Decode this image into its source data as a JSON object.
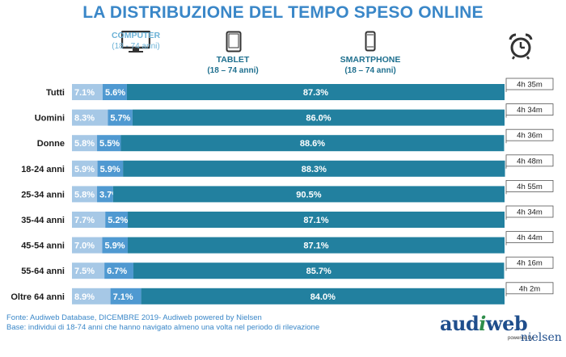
{
  "title": "LA DISTRIBUZIONE DEL TEMPO SPESO ONLINE",
  "devices": [
    {
      "name": "COMPUTER",
      "range": "(18 - 74 anni)",
      "icon": "monitor-icon",
      "color": "#a6c8e6"
    },
    {
      "name": "TABLET",
      "range": "(18 – 74 anni)",
      "icon": "tablet-icon",
      "color": "#4f99d1"
    },
    {
      "name": "SMARTPHONE",
      "range": "(18 – 74 anni)",
      "icon": "smartphone-icon",
      "color": "#22809f"
    }
  ],
  "time_icon": "alarm-clock-icon",
  "chart_data": {
    "type": "bar",
    "orientation": "horizontal",
    "stacked": true,
    "categories": [
      "Tutti",
      "Uomini",
      "Donne",
      "18-24 anni",
      "25-34 anni",
      "35-44 anni",
      "45-54 anni",
      "55-64 anni",
      "Oltre 64 anni"
    ],
    "series": [
      {
        "name": "COMPUTER",
        "color": "#a6c8e6",
        "labels": [
          "7.1%",
          "8.3%",
          "5.8%",
          "5.9%",
          "5.8%",
          "7.7%",
          "7.0%",
          "7.5%",
          "8.9%"
        ],
        "values": [
          7.1,
          8.3,
          5.8,
          5.9,
          5.8,
          7.7,
          7.0,
          7.5,
          8.9
        ]
      },
      {
        "name": "TABLET",
        "color": "#4f99d1",
        "labels": [
          "5.6%",
          "5.7%",
          "5.5%",
          "5.9%",
          "3.7%",
          "5.2%",
          "5.9%",
          "6.7%",
          "7.1%"
        ],
        "values": [
          5.6,
          5.7,
          5.5,
          5.9,
          3.7,
          5.2,
          5.9,
          6.7,
          7.1
        ]
      },
      {
        "name": "SMARTPHONE",
        "color": "#22809f",
        "labels": [
          "87.3%",
          "86.0%",
          "88.6%",
          "88.3%",
          "90.5%",
          "87.1%",
          "87.1%",
          "85.7%",
          "84.0%"
        ],
        "values": [
          87.3,
          86.0,
          88.6,
          88.3,
          90.5,
          87.1,
          87.1,
          85.7,
          84.0
        ]
      }
    ],
    "time_spent": [
      "4h 35m",
      "4h 34m",
      "4h 36m",
      "4h 48m",
      "4h 55m",
      "4h 34m",
      "4h 44m",
      "4h 16m",
      "4h 2m"
    ],
    "xlim": [
      0,
      100
    ],
    "grid": false
  },
  "source": {
    "line1": "Fonte: Audiweb Database, DICEMBRE 2019- Audiweb powered by Nielsen",
    "line2": "Base: individui di 18-74 anni che hanno navigato almeno una volta nel periodo di rilevazione"
  },
  "logo": {
    "main_a": "aud",
    "main_i": "i",
    "main_b": "web",
    "powered": "powered by",
    "partner": "nielsen"
  }
}
